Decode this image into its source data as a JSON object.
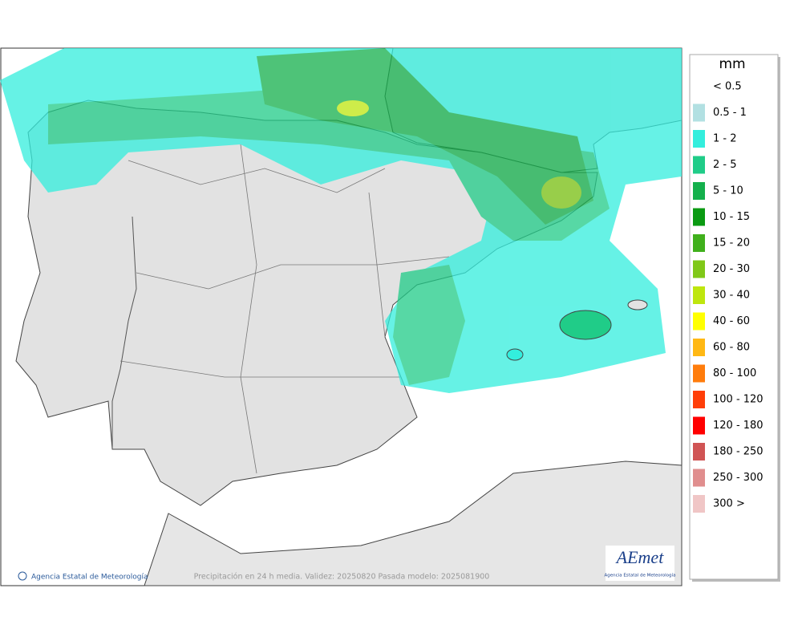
{
  "legend": {
    "title": "mm",
    "items": [
      {
        "label": "< 0.5",
        "color": null
      },
      {
        "label": "0.5 - 1",
        "color": "#b2e0e2"
      },
      {
        "label": "1 - 2",
        "color": "#33eedd"
      },
      {
        "label": "2 - 5",
        "color": "#20cc88"
      },
      {
        "label": "5 - 10",
        "color": "#14b04c"
      },
      {
        "label": "10 - 15",
        "color": "#0a9a12"
      },
      {
        "label": "15 - 20",
        "color": "#40b01c"
      },
      {
        "label": "20 - 30",
        "color": "#80c818"
      },
      {
        "label": "30 - 40",
        "color": "#bee60e"
      },
      {
        "label": "40 - 60",
        "color": "#ffff00"
      },
      {
        "label": "60 - 80",
        "color": "#ffb814"
      },
      {
        "label": "80 - 100",
        "color": "#ff7c0c"
      },
      {
        "label": "100 - 120",
        "color": "#ff3e08"
      },
      {
        "label": "120 - 180",
        "color": "#ff0000"
      },
      {
        "label": "180 - 250",
        "color": "#d05454"
      },
      {
        "label": "250 - 300",
        "color": "#e08e8e"
      },
      {
        "label": "300 >",
        "color": "#f0c6c6"
      }
    ]
  },
  "footer": {
    "credit": "Agencia Estatal de Meteorología",
    "caption": "Precipitación en 24 h media. Validez: 20250820 Pasada modelo: 2025081900"
  },
  "logo": {
    "name": "AEmet",
    "subtitle": "Agencia Estatal de Meteorología"
  }
}
